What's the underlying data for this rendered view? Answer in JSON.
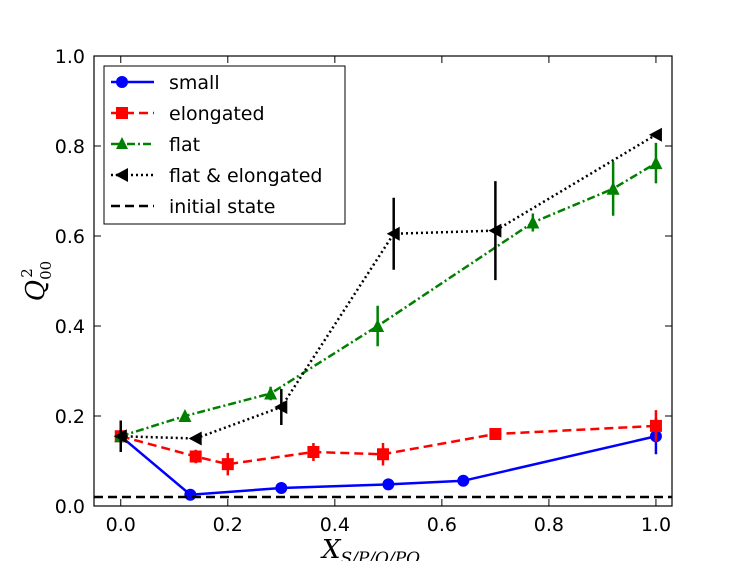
{
  "chart_data": {
    "type": "line",
    "xlabel": "X_{S/P/O/PO}",
    "xlabel_main": "X",
    "xlabel_sub": "S/P/O/PO",
    "ylabel": "Q^2_{00}",
    "ylabel_main": "Q",
    "ylabel_sup": "2",
    "ylabel_sub": "00",
    "xlim": [
      -0.05,
      1.03
    ],
    "ylim": [
      0.0,
      1.0
    ],
    "x_ticks": [
      "0.0",
      "0.2",
      "0.4",
      "0.6",
      "0.8",
      "1.0"
    ],
    "y_ticks": [
      "0.0",
      "0.2",
      "0.4",
      "0.6",
      "0.8",
      "1.0"
    ],
    "grid": false,
    "legend_position": "upper-left",
    "series": [
      {
        "name": "small",
        "color": "#0000ff",
        "linestyle": "solid",
        "marker": "circle",
        "x": [
          0.0,
          0.13,
          0.3,
          0.5,
          0.64,
          1.0
        ],
        "y": [
          0.155,
          0.025,
          0.04,
          0.048,
          0.056,
          0.155
        ],
        "err": [
          0.01,
          0.005,
          0.005,
          0.005,
          0.005,
          0.04
        ]
      },
      {
        "name": "elongated",
        "color": "#ff0000",
        "linestyle": "dashed",
        "marker": "square",
        "x": [
          0.0,
          0.14,
          0.2,
          0.36,
          0.49,
          0.7,
          1.0
        ],
        "y": [
          0.155,
          0.11,
          0.093,
          0.12,
          0.115,
          0.16,
          0.178
        ],
        "err": [
          0.01,
          0.015,
          0.025,
          0.02,
          0.025,
          0.01,
          0.035
        ]
      },
      {
        "name": "flat",
        "color": "#008000",
        "linestyle": "dashdot",
        "marker": "triangle-up",
        "x": [
          0.0,
          0.12,
          0.28,
          0.48,
          0.77,
          0.92,
          1.0
        ],
        "y": [
          0.155,
          0.2,
          0.25,
          0.4,
          0.63,
          0.705,
          0.762
        ],
        "err": [
          0.01,
          0.01,
          0.015,
          0.045,
          0.02,
          0.06,
          0.045
        ]
      },
      {
        "name": "flat & elongated",
        "color": "#000000",
        "linestyle": "dotted",
        "marker": "triangle-left",
        "x": [
          0.0,
          0.14,
          0.3,
          0.51,
          0.7,
          1.0
        ],
        "y": [
          0.155,
          0.15,
          0.22,
          0.605,
          0.612,
          0.825
        ],
        "err": [
          0.035,
          0.005,
          0.04,
          0.08,
          0.11,
          0.005
        ]
      },
      {
        "name": "initial state",
        "color": "#000000",
        "linestyle": "dashed",
        "marker": "none",
        "x": [
          -0.05,
          1.03
        ],
        "y": [
          0.02,
          0.02
        ],
        "err": []
      }
    ]
  }
}
